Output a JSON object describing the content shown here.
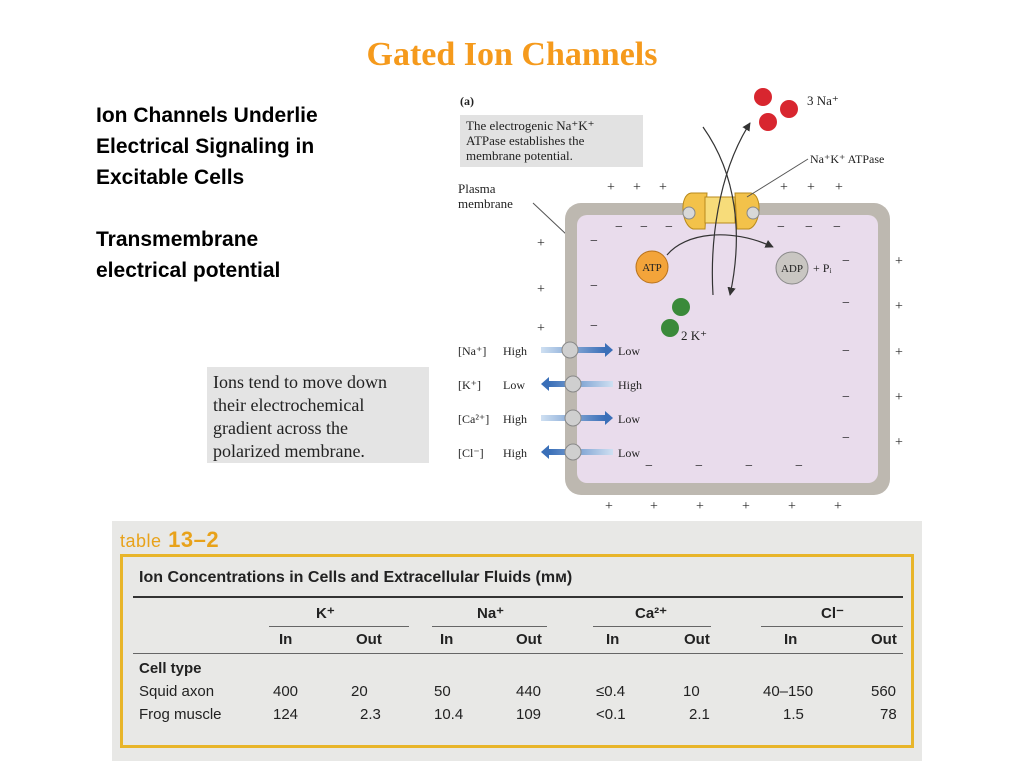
{
  "title": "Gated Ion Channels",
  "bullets": [
    "Ion Channels Underlie\nElectrical Signaling in\nExcitable Cells",
    "Transmembrane\nelectrical potential"
  ],
  "note": "Ions tend to move down\ntheir electrochemical\ngradient across the\npolarized membrane.",
  "figure": {
    "panel_label": "(a)",
    "caption": [
      "The electrogenic Na⁺K⁺",
      "ATPase establishes the",
      "membrane potential."
    ],
    "plasma_membrane_label": [
      "Plasma",
      "membrane"
    ],
    "sodium_label": "3 Na⁺",
    "pump_label": "Na⁺K⁺ ATPase",
    "atp_label": "ATP",
    "adp_label": "ADP",
    "pi_label": "+ Pᵢ",
    "potassium_label": "2 K⁺",
    "plus_sign": "+",
    "minus_sign": "−",
    "gradients": [
      {
        "ion": "[Na⁺]",
        "outside": "High",
        "inside": "Low",
        "direction": "in"
      },
      {
        "ion": "[K⁺]",
        "outside": "Low",
        "inside": "High",
        "direction": "out"
      },
      {
        "ion": "[Ca²⁺]",
        "outside": "High",
        "inside": "Low",
        "direction": "in"
      },
      {
        "ion": "[Cl⁻]",
        "outside": "High",
        "inside": "Low",
        "direction": "out"
      }
    ]
  },
  "table": {
    "number_lead": "table",
    "number": "13–2",
    "caption": "Ion Concentrations in Cells and Extracellular Fluids (mᴍ)",
    "ions": [
      "K⁺",
      "Na⁺",
      "Ca²⁺",
      "Cl⁻"
    ],
    "in_label": "In",
    "out_label": "Out",
    "row_group": "Cell type",
    "rows": [
      {
        "cell": "Squid axon",
        "values": [
          "400",
          "20",
          "50",
          "440",
          "≤0.4",
          "10",
          "40–150",
          "560"
        ]
      },
      {
        "cell": "Frog muscle",
        "values": [
          "124",
          "2.3",
          "10.4",
          "109",
          "<0.1",
          "2.1",
          "1.5",
          "78"
        ]
      }
    ]
  }
}
